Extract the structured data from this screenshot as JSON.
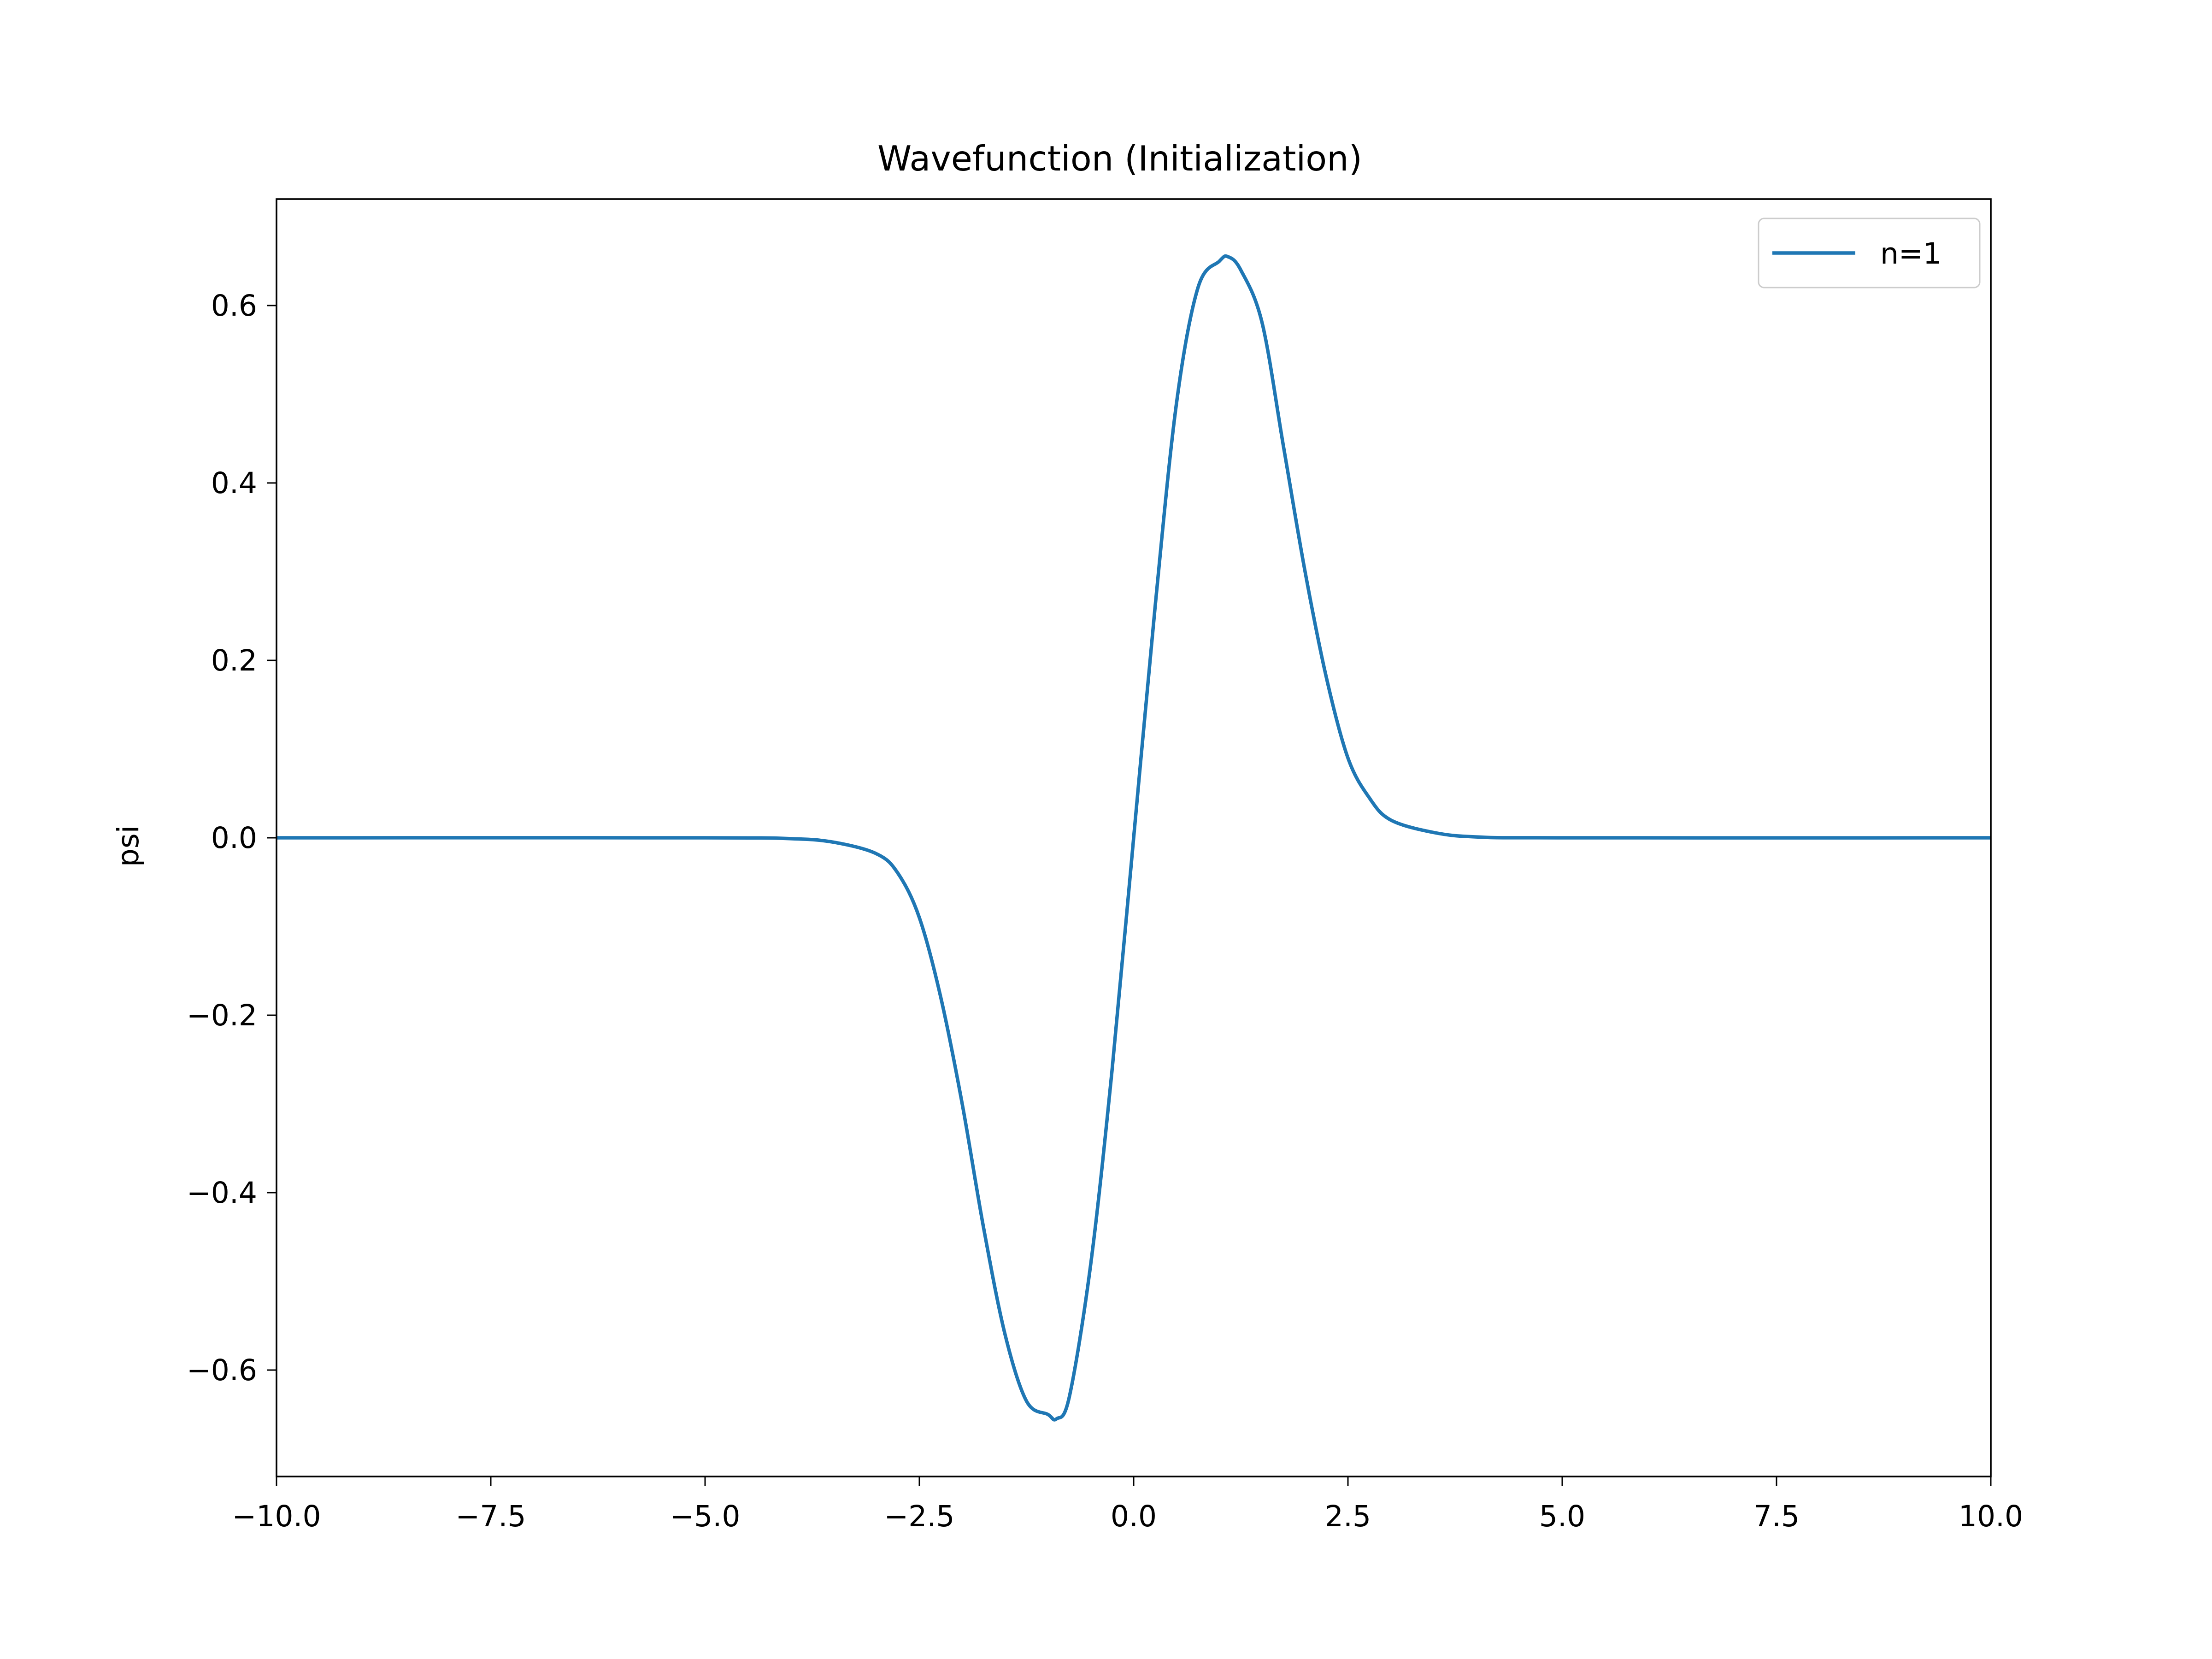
{
  "chart_data": {
    "type": "line",
    "title": "Wavefunction (Initialization)",
    "xlabel": "",
    "ylabel": "psi",
    "xlim": [
      -10,
      10
    ],
    "ylim": [
      -0.72,
      0.72
    ],
    "grid": false,
    "legend": {
      "placement": "top-right"
    },
    "x_ticks": [
      -10,
      -7.5,
      -5,
      -2.5,
      0,
      2.5,
      5,
      7.5,
      10
    ],
    "x_tick_labels": [
      "−10.0",
      "−7.5",
      "−5.0",
      "−2.5",
      "0.0",
      "2.5",
      "5.0",
      "7.5",
      "10.0"
    ],
    "y_ticks": [
      -0.6,
      -0.4,
      -0.2,
      0,
      0.2,
      0.4,
      0.6
    ],
    "y_tick_labels": [
      "−0.6",
      "−0.4",
      "−0.2",
      "0.0",
      "0.2",
      "0.4",
      "0.6"
    ],
    "series": [
      {
        "name": "n=1",
        "color": "#1f77b4",
        "x": [
          -10,
          -5,
          -4,
          -3.5,
          -3,
          -2.75,
          -2.5,
          -2.25,
          -2,
          -1.75,
          -1.5,
          -1.25,
          -1,
          -0.9,
          -0.75,
          -0.5,
          -0.25,
          0,
          0.25,
          0.5,
          0.75,
          1,
          1.1,
          1.25,
          1.5,
          1.75,
          2,
          2.25,
          2.5,
          2.75,
          3,
          3.5,
          4,
          5,
          10
        ],
        "y": [
          0,
          0,
          -0.001,
          -0.005,
          -0.018,
          -0.04,
          -0.09,
          -0.18,
          -0.3,
          -0.44,
          -0.56,
          -0.635,
          -0.65,
          -0.655,
          -0.63,
          -0.48,
          -0.26,
          0,
          0.26,
          0.49,
          0.62,
          0.65,
          0.655,
          0.64,
          0.58,
          0.44,
          0.3,
          0.18,
          0.09,
          0.045,
          0.02,
          0.006,
          0.001,
          0,
          0
        ]
      }
    ]
  }
}
